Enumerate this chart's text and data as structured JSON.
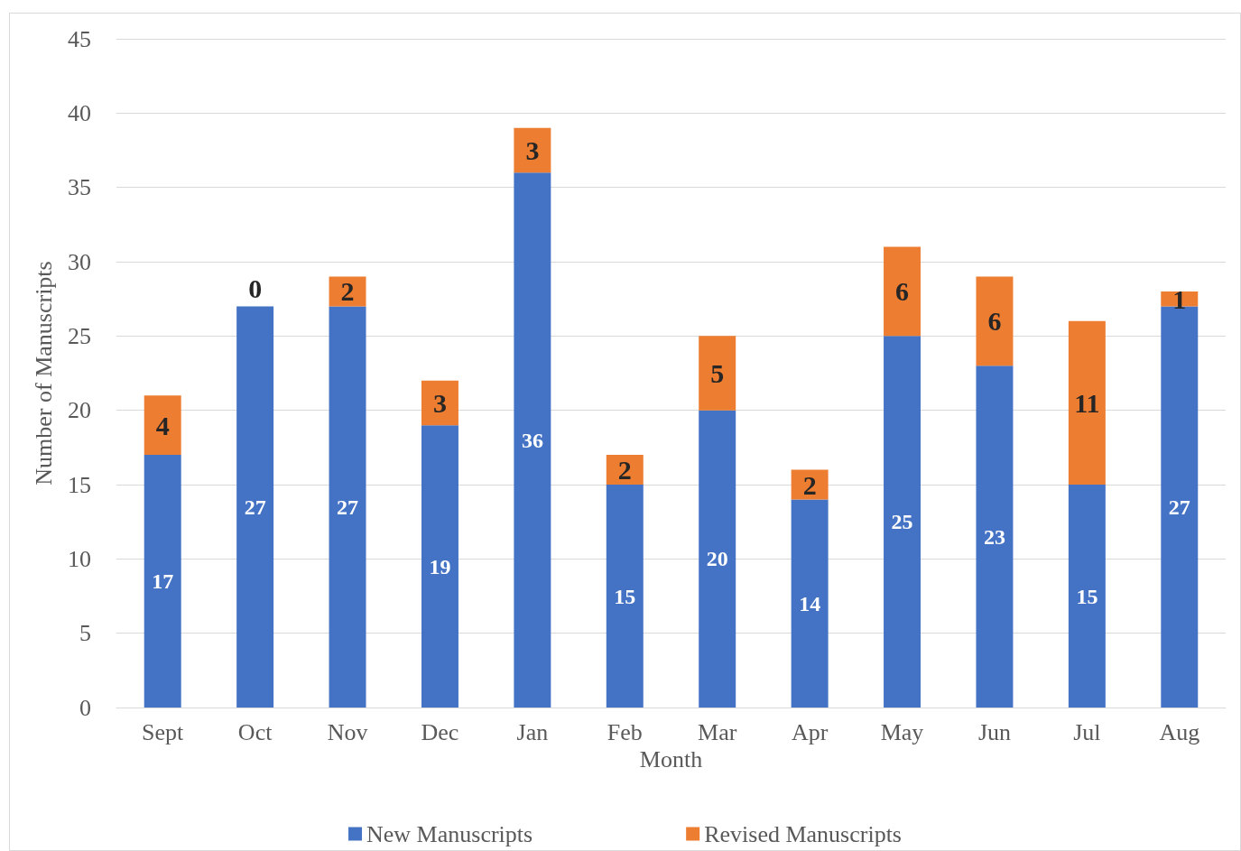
{
  "chart_data": {
    "type": "bar",
    "stacked": true,
    "xlabel": "Month",
    "ylabel": "Number of Manuscripts",
    "categories": [
      "Sept",
      "Oct",
      "Nov",
      "Dec",
      "Jan",
      "Feb",
      "Mar",
      "Apr",
      "May",
      "Jun",
      "Jul",
      "Aug"
    ],
    "series": [
      {
        "name": "New Manuscripts",
        "color": "#4472c4",
        "values": [
          17,
          27,
          27,
          19,
          36,
          15,
          20,
          14,
          25,
          23,
          15,
          27
        ]
      },
      {
        "name": "Revised Manuscripts",
        "color": "#ed7d31",
        "values": [
          4,
          0,
          2,
          3,
          3,
          2,
          5,
          2,
          6,
          6,
          11,
          1
        ]
      }
    ],
    "ylim": [
      0,
      45
    ],
    "yticks": [
      0,
      5,
      10,
      15,
      20,
      25,
      30,
      35,
      40,
      45
    ],
    "grid": "y",
    "legend": "bottom",
    "data_labels": true
  }
}
